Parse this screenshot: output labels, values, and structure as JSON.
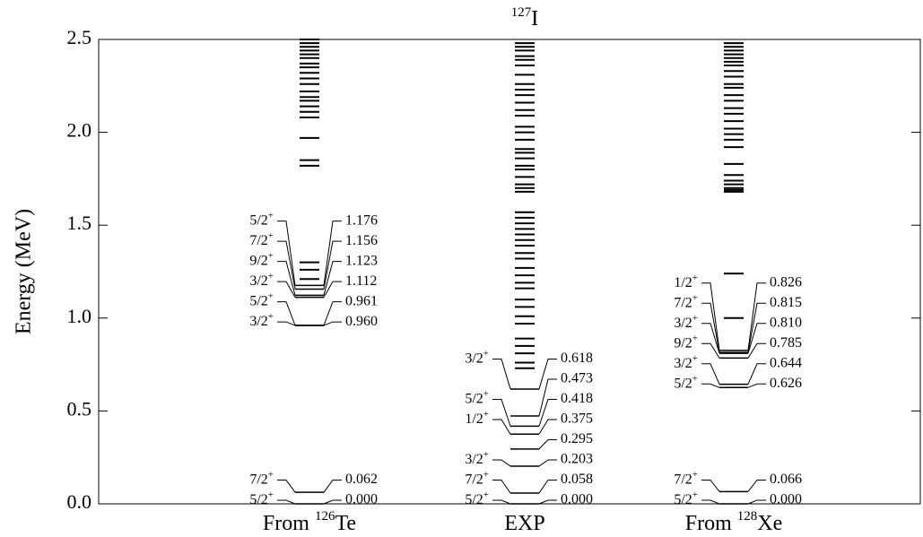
{
  "chart_data": {
    "type": "level-scheme",
    "title": {
      "mass": "127",
      "element": "I"
    },
    "y_label": "Energy (MeV)",
    "ylim": [
      0,
      2.5
    ],
    "yticks": [
      {
        "value": 0,
        "label": "0.0"
      },
      0.5,
      {
        "value": 1,
        "label": "1.0"
      },
      1.5,
      {
        "value": 2,
        "label": "2.0"
      },
      2.5
    ],
    "color": "#000000",
    "columns": [
      {
        "name": {
          "from": "From",
          "mass": "126",
          "element": "Te"
        },
        "labeled": {
          "values": [
            0,
            0.062,
            0.96,
            0.961,
            1.112,
            1.123,
            1.156,
            1.176
          ],
          "value_labels": [
            "0.000",
            "0.062",
            "0.960",
            "0.961",
            "1.112",
            "1.123",
            "1.156",
            "1.176"
          ],
          "spins": [
            "5/2",
            "7/2",
            "3/2",
            "5/2",
            "3/2",
            "9/2",
            "7/2",
            "5/2"
          ],
          "parities": [
            "+",
            "+",
            "+",
            "+",
            "+",
            "+",
            "+",
            "+"
          ]
        },
        "levels": [
          1.21,
          1.26,
          1.3,
          1.82,
          1.85,
          1.97,
          2.08,
          2.11,
          2.14,
          2.17,
          2.19,
          2.22,
          2.26,
          2.29,
          2.32,
          2.35,
          2.37,
          2.4,
          2.42,
          2.44,
          2.46,
          2.48,
          2.5
        ]
      },
      {
        "name": {
          "element": "EXP"
        },
        "labeled": {
          "values": [
            0,
            0.058,
            0.203,
            0.295,
            0.375,
            0.418,
            0.473,
            0.618
          ],
          "value_labels": [
            "0.000",
            "0.058",
            "0.203",
            "0.295",
            "0.375",
            "0.418",
            "0.473",
            "0.618"
          ],
          "spins": [
            "5/2",
            "7/2",
            "3/2",
            null,
            "1/2",
            "5/2",
            null,
            "3/2"
          ],
          "parities": [
            "+",
            "+",
            "+",
            null,
            "+",
            "+",
            null,
            "+"
          ]
        },
        "levels": [
          0.73,
          0.76,
          0.81,
          0.85,
          0.89,
          0.97,
          1.01,
          1.06,
          1.1,
          1.16,
          1.19,
          1.23,
          1.27,
          1.32,
          1.35,
          1.39,
          1.42,
          1.45,
          1.48,
          1.51,
          1.54,
          1.57,
          1.68,
          1.7,
          1.72,
          1.76,
          1.8,
          1.82,
          1.86,
          1.89,
          1.91,
          1.96,
          2.0,
          2.03,
          2.09,
          2.12,
          2.16,
          2.2,
          2.23,
          2.26,
          2.31,
          2.36,
          2.39,
          2.41,
          2.44,
          2.46,
          2.48
        ]
      },
      {
        "name": {
          "from": "From",
          "mass": "128",
          "element": "Xe"
        },
        "labeled": {
          "values": [
            0,
            0.066,
            0.626,
            0.644,
            0.785,
            0.81,
            0.815,
            0.826
          ],
          "value_labels": [
            "0.000",
            "0.066",
            "0.626",
            "0.644",
            "0.785",
            "0.810",
            "0.815",
            "0.826"
          ],
          "spins": [
            "5/2",
            "7/2",
            "5/2",
            "3/2",
            "9/2",
            "3/2",
            "7/2",
            "1/2"
          ],
          "parities": [
            "+",
            "+",
            "+",
            "+",
            "+",
            "+",
            "+",
            "+"
          ]
        },
        "levels": [
          1.0,
          1.24,
          1.68,
          1.69,
          1.7,
          1.72,
          1.74,
          1.77,
          1.83,
          1.92,
          1.96,
          1.99,
          2.02,
          2.06,
          2.1,
          2.13,
          2.17,
          2.2,
          2.24,
          2.26,
          2.3,
          2.33,
          2.36,
          2.38,
          2.4,
          2.42,
          2.44,
          2.46,
          2.48
        ]
      }
    ]
  }
}
